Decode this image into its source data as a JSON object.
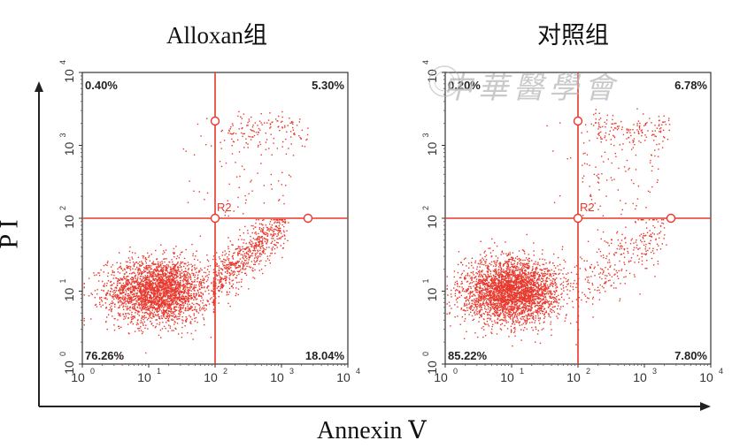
{
  "figure": {
    "x_axis_label": "Annexin Ⅴ",
    "y_axis_label": "P I",
    "watermark_text": "中華醫學會",
    "accent_color": "#e8382c"
  },
  "chart_data": [
    {
      "type": "scatter",
      "title": "Alloxan组",
      "xlabel": "Annexin Ⅴ",
      "ylabel": "P I",
      "xscale": "log",
      "yscale": "log",
      "xlim": [
        1,
        10000
      ],
      "ylim": [
        1,
        10000
      ],
      "x_ticks": [
        "10",
        "10",
        "10",
        "10",
        "10"
      ],
      "x_tick_exponents": [
        "0",
        "1",
        "2",
        "3",
        "4"
      ],
      "y_ticks": [
        "10",
        "10",
        "10",
        "10",
        "10"
      ],
      "y_tick_exponents": [
        "0",
        "1",
        "2",
        "3",
        "4"
      ],
      "gate_label": "R2",
      "gate_x": 100,
      "gate_y": 100,
      "quadrants": {
        "upper_left": "0.40%",
        "upper_right": "5.30%",
        "lower_left": "76.26%",
        "lower_right": "18.04%"
      },
      "point_color": "#e8382c"
    },
    {
      "type": "scatter",
      "title": "对照组",
      "xlabel": "Annexin Ⅴ",
      "ylabel": "P I",
      "xscale": "log",
      "yscale": "log",
      "xlim": [
        1,
        10000
      ],
      "ylim": [
        1,
        10000
      ],
      "x_ticks": [
        "10",
        "10",
        "10",
        "10",
        "10"
      ],
      "x_tick_exponents": [
        "0",
        "1",
        "2",
        "3",
        "4"
      ],
      "y_ticks": [
        "10",
        "10",
        "10",
        "10",
        "10"
      ],
      "y_tick_exponents": [
        "0",
        "1",
        "2",
        "3",
        "4"
      ],
      "gate_label": "R2",
      "gate_x": 100,
      "gate_y": 100,
      "quadrants": {
        "upper_left": "0.20%",
        "upper_right": "6.78%",
        "lower_left": "85.22%",
        "lower_right": "7.80%"
      },
      "point_color": "#e8382c"
    }
  ]
}
